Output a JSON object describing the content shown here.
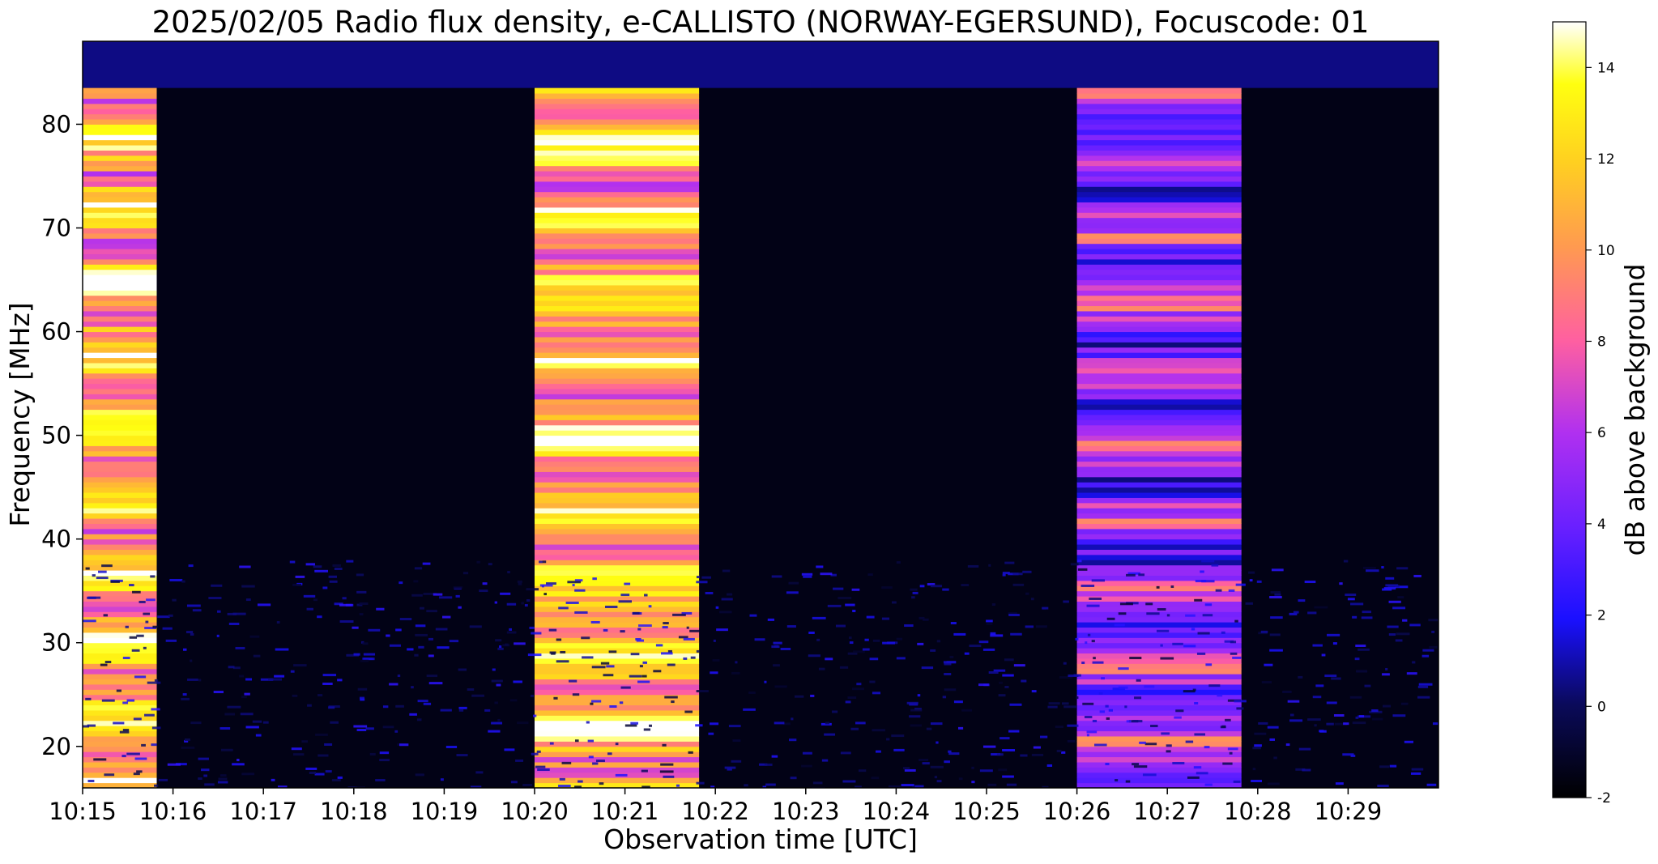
{
  "chart_data": {
    "type": "heatmap",
    "title": "2025/02/05  Radio flux density, e-CALLISTO (NORWAY-EGERSUND), Focuscode: 01",
    "xlabel": "Observation time [UTC]",
    "ylabel": "Frequency [MHz]",
    "x_tick_labels": [
      "10:15",
      "10:16",
      "10:17",
      "10:18",
      "10:19",
      "10:20",
      "10:21",
      "10:22",
      "10:23",
      "10:24",
      "10:25",
      "10:26",
      "10:27",
      "10:28",
      "10:29"
    ],
    "x_tick_minutes": [
      0,
      1,
      2,
      3,
      4,
      5,
      6,
      7,
      8,
      9,
      10,
      11,
      12,
      13,
      14
    ],
    "xlim_minutes": [
      0,
      15.0
    ],
    "y_ticks": [
      20,
      30,
      40,
      50,
      60,
      70,
      80
    ],
    "ylim": [
      16,
      88
    ],
    "colorbar": {
      "label": "dB above background",
      "ticks": [
        -2,
        0,
        2,
        4,
        6,
        8,
        10,
        12,
        14
      ],
      "range": [
        -2,
        15
      ],
      "colormap": "gnuplot2"
    },
    "calibration_bursts": [
      {
        "start_minute": 0.0,
        "end_minute": 0.82,
        "level_db": 12
      },
      {
        "start_minute": 5.0,
        "end_minute": 6.82,
        "level_db": 12
      },
      {
        "start_minute": 11.0,
        "end_minute": 12.82,
        "level_db": 6
      }
    ],
    "background_db": -1.5,
    "band_above_mhz": 83.5,
    "band_above_db": 0.5
  }
}
